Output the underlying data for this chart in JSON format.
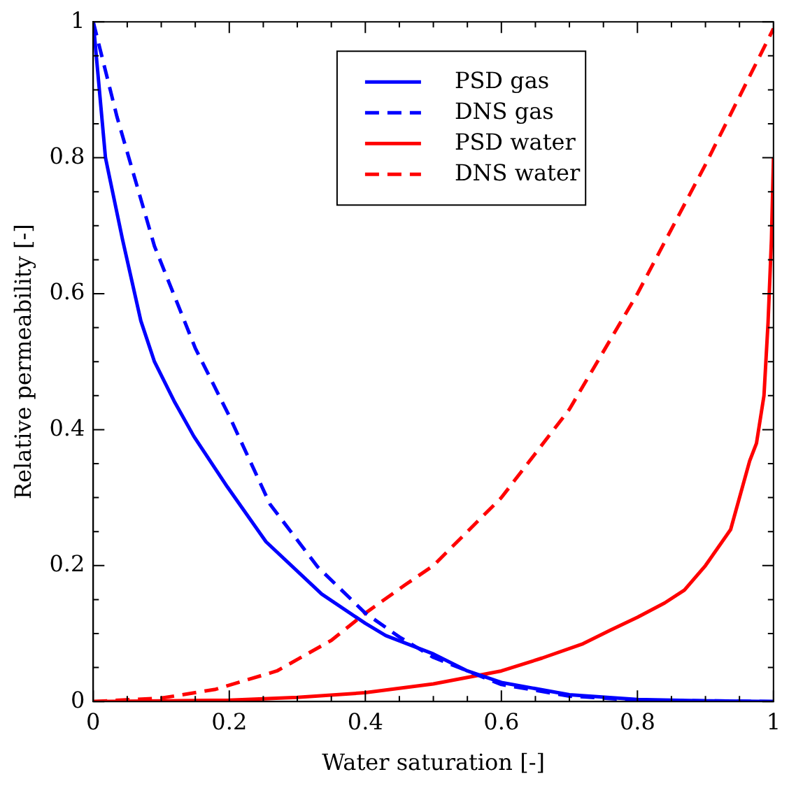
{
  "chart_data": {
    "type": "line",
    "xlabel": "Water saturation [-]",
    "ylabel": "Relative permeability [-]",
    "xlim": [
      0,
      1
    ],
    "ylim": [
      0,
      1
    ],
    "xticks": [
      0,
      {
        "value": 0.05,
        "label": null
      },
      {
        "value": 0.1,
        "label": null
      },
      {
        "value": 0.15,
        "label": null
      },
      0.2,
      {
        "value": 0.25,
        "label": null
      },
      {
        "value": 0.3,
        "label": null
      },
      {
        "value": 0.35,
        "label": null
      },
      0.4,
      {
        "value": 0.45,
        "label": null
      },
      {
        "value": 0.5,
        "label": null
      },
      {
        "value": 0.55,
        "label": null
      },
      0.6,
      {
        "value": 0.65,
        "label": null
      },
      {
        "value": 0.7,
        "label": null
      },
      {
        "value": 0.75,
        "label": null
      },
      0.8,
      {
        "value": 0.85,
        "label": null
      },
      {
        "value": 0.9,
        "label": null
      },
      {
        "value": 0.95,
        "label": null
      },
      1
    ],
    "yticks": [
      0,
      {
        "value": 0.05,
        "label": null
      },
      {
        "value": 0.1,
        "label": null
      },
      {
        "value": 0.15,
        "label": null
      },
      0.2,
      {
        "value": 0.25,
        "label": null
      },
      {
        "value": 0.3,
        "label": null
      },
      {
        "value": 0.35,
        "label": null
      },
      0.4,
      {
        "value": 0.45,
        "label": null
      },
      {
        "value": 0.5,
        "label": null
      },
      {
        "value": 0.55,
        "label": null
      },
      0.6,
      {
        "value": 0.65,
        "label": null
      },
      {
        "value": 0.7,
        "label": null
      },
      {
        "value": 0.75,
        "label": null
      },
      0.8,
      {
        "value": 0.85,
        "label": null
      },
      {
        "value": 0.9,
        "label": null
      },
      {
        "value": 0.95,
        "label": null
      },
      1
    ],
    "grid": false,
    "legend": "top",
    "marker": "none",
    "series": [
      {
        "name": "PSD gas",
        "color": "#0000ff",
        "line_style": "solid",
        "x": [
          0,
          0.018,
          0.043,
          0.07,
          0.09,
          0.12,
          0.148,
          0.197,
          0.254,
          0.336,
          0.4,
          0.43,
          0.5,
          0.55,
          0.6,
          0.7,
          0.8,
          0.9,
          1
        ],
        "values": [
          1,
          0.8,
          0.68,
          0.56,
          0.5,
          0.44,
          0.39,
          0.316,
          0.235,
          0.158,
          0.115,
          0.097,
          0.07,
          0.045,
          0.028,
          0.01,
          0.003,
          0.001,
          0
        ]
      },
      {
        "name": "DNS gas",
        "color": "#0000ff",
        "line_style": "dashed",
        "x": [
          0,
          0.035,
          0.09,
          0.15,
          0.2,
          0.26,
          0.33,
          0.4,
          0.45,
          0.5,
          0.6,
          0.7,
          0.8,
          1
        ],
        "values": [
          1,
          0.86,
          0.67,
          0.52,
          0.42,
          0.29,
          0.198,
          0.13,
          0.095,
          0.065,
          0.025,
          0.008,
          0.002,
          0
        ]
      },
      {
        "name": "PSD water",
        "color": "#ff0000",
        "line_style": "solid",
        "x": [
          0,
          0.2,
          0.3,
          0.4,
          0.5,
          0.6,
          0.66,
          0.72,
          0.76,
          0.8,
          0.84,
          0.869,
          0.9,
          0.937,
          0.965,
          0.975,
          0.986,
          0.992,
          0.997,
          1
        ],
        "values": [
          0,
          0.002,
          0.006,
          0.013,
          0.026,
          0.045,
          0.064,
          0.085,
          0.105,
          0.124,
          0.145,
          0.164,
          0.2,
          0.253,
          0.354,
          0.38,
          0.45,
          0.557,
          0.68,
          0.8
        ]
      },
      {
        "name": "DNS water",
        "color": "#ff0000",
        "line_style": "dashed",
        "x": [
          0,
          0.1,
          0.18,
          0.27,
          0.35,
          0.4,
          0.459,
          0.5,
          0.6,
          0.7,
          0.8,
          0.9,
          1
        ],
        "values": [
          0,
          0.005,
          0.018,
          0.045,
          0.09,
          0.13,
          0.172,
          0.2,
          0.3,
          0.43,
          0.6,
          0.79,
          0.99
        ]
      }
    ]
  }
}
